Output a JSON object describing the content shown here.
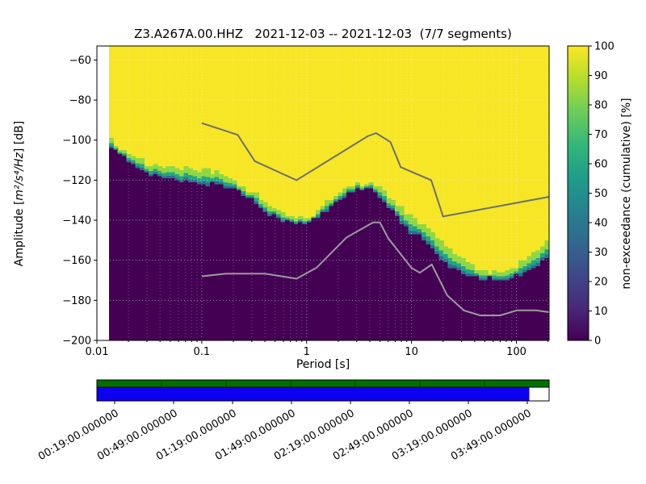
{
  "title": "Z3.A267A.00.HHZ   2021-12-03 -- 2021-12-03  (7/7 segments)",
  "chart_data": {
    "type": "heatmap",
    "title": "Z3.A267A.00.HHZ   2021-12-03 -- 2021-12-03  (7/7 segments)",
    "xlabel": "Period [s]",
    "ylabel_prefix": "Amplitude [",
    "ylabel_math": "m²/s⁴/Hz",
    "ylabel_suffix": "] [dB]",
    "x_scale": "log",
    "xlim": [
      0.01,
      205
    ],
    "ylim": [
      -200,
      -53
    ],
    "x_major_ticks": [
      0.01,
      0.1,
      1,
      10,
      100
    ],
    "x_major_tick_labels": [
      "0.01",
      "0.1",
      "1",
      "10",
      "100"
    ],
    "y_ticks": [
      -60,
      -80,
      -100,
      -120,
      -140,
      -160,
      -180,
      -200
    ],
    "grid": true,
    "colormap": "viridis",
    "colorbar": {
      "label": "non-exceedance (cumulative) [%]",
      "ticks": [
        0,
        10,
        20,
        30,
        40,
        50,
        60,
        70,
        80,
        90,
        100
      ],
      "stops": [
        "#440154",
        "#482878",
        "#3e4989",
        "#31688e",
        "#26828e",
        "#1f9e89",
        "#35b779",
        "#6dcd59",
        "#b4de2c",
        "#fde725"
      ]
    },
    "data_period_range": [
      0.013,
      205
    ],
    "cumulative_boundary": {
      "periods": [
        0.013,
        0.02,
        0.03,
        0.045,
        0.07,
        0.1,
        0.14,
        0.2,
        0.3,
        0.45,
        0.7,
        1.0,
        1.4,
        2.0,
        2.8,
        4.0,
        5.5,
        7.5,
        10,
        13,
        17,
        22,
        30,
        45,
        70,
        100,
        140,
        205
      ],
      "dark_top_db": [
        -103,
        -111,
        -116,
        -119,
        -121,
        -122,
        -122,
        -124,
        -130,
        -137,
        -142,
        -142,
        -137,
        -130,
        -125,
        -124,
        -131,
        -140,
        -146,
        -149,
        -157,
        -163,
        -167,
        -169,
        -170,
        -168,
        -164,
        -159
      ],
      "green_top_db": [
        -100,
        -107,
        -112,
        -113,
        -114,
        -115,
        -116,
        -120,
        -126,
        -133,
        -139,
        -139,
        -133,
        -126,
        -122,
        -121,
        -126,
        -133,
        -138,
        -143,
        -148,
        -153,
        -160,
        -165,
        -166,
        -163,
        -157,
        -150
      ]
    },
    "noise_models": {
      "high": {
        "periods": [
          0.1,
          0.22,
          0.32,
          0.8,
          3.8,
          4.6,
          6.3,
          7.9,
          15.4,
          20,
          205
        ],
        "db": [
          -91.5,
          -97.4,
          -110.5,
          -120.0,
          -98.1,
          -96.5,
          -101.0,
          -113.5,
          -120.0,
          -138.1,
          -128.3
        ]
      },
      "low": {
        "periods": [
          0.1,
          0.17,
          0.4,
          0.8,
          1.24,
          2.4,
          4.3,
          5.0,
          6.0,
          10,
          12,
          15.6,
          21.9,
          31.6,
          45,
          70,
          101,
          154,
          205
        ],
        "db": [
          -168.0,
          -166.7,
          -166.7,
          -169.2,
          -163.7,
          -148.6,
          -141.1,
          -141.1,
          -149.0,
          -163.8,
          -166.2,
          -162.1,
          -177.5,
          -185.0,
          -187.5,
          -187.5,
          -185.0,
          -185.0,
          -185.9
        ]
      }
    },
    "coverage": {
      "segment_count": 7,
      "labels": [
        "00:19:00.000000",
        "00:49:00.000000",
        "01:19:00.000000",
        "01:49:00.000000",
        "02:19:00.000000",
        "02:49:00.000000",
        "03:19:00.000000",
        "03:49:00.000000"
      ],
      "label_minutes": [
        19,
        49,
        79,
        109,
        139,
        169,
        199,
        229
      ],
      "axis_start_minute": 10,
      "axis_end_minute": 240,
      "blue_end_minute": 230,
      "bar_green_color": "#007100",
      "bar_blue_color": "#0d00f0"
    },
    "colors": {
      "yellow": "#f6e626",
      "dark": "#440154",
      "band_light": "#8fd744",
      "band_mid": "#21a585",
      "band_deep": "#2c6e8e",
      "grid": "#ffffff",
      "high_model_line": "#6f6f6f",
      "low_model_line": "#9b9b9b",
      "frame": "#000000"
    }
  }
}
